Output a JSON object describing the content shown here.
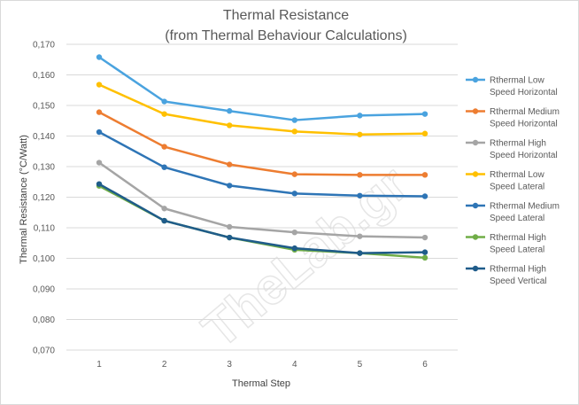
{
  "chart_data": {
    "type": "line",
    "title": "Thermal Resistance",
    "subtitle": "(from Thermal Behaviour Calculations)",
    "xlabel": "Thermal Step",
    "ylabel": "Thermal Resistance (°C/Watt)",
    "x": [
      1,
      2,
      3,
      4,
      5,
      6
    ],
    "ylim": [
      0.07,
      0.17
    ],
    "yticks": [
      "0,070",
      "0,080",
      "0,090",
      "0,100",
      "0,110",
      "0,120",
      "0,130",
      "0,140",
      "0,150",
      "0,160",
      "0,170"
    ],
    "grid": true,
    "legend_position": "right",
    "series": [
      {
        "name_line1": "Rthermal Low",
        "name_line2": "Speed Horizontal",
        "color": "#4aa3df",
        "values": [
          0.1658,
          0.1513,
          0.1482,
          0.1452,
          0.1467,
          0.1472
        ]
      },
      {
        "name_line1": "Rthermal Medium",
        "name_line2": "Speed Horizontal",
        "color": "#ed7d31",
        "values": [
          0.1478,
          0.1365,
          0.1307,
          0.1275,
          0.1273,
          0.1273
        ]
      },
      {
        "name_line1": "Rthermal High",
        "name_line2": "Speed Horizontal",
        "color": "#a5a5a5",
        "values": [
          0.1313,
          0.1163,
          0.1103,
          0.1085,
          0.1072,
          0.1068
        ]
      },
      {
        "name_line1": "Rthermal Low",
        "name_line2": "Speed Lateral",
        "color": "#ffc000",
        "values": [
          0.1568,
          0.1472,
          0.1435,
          0.1415,
          0.1405,
          0.1408
        ]
      },
      {
        "name_line1": "Rthermal Medium",
        "name_line2": "Speed Lateral",
        "color": "#2e75b6",
        "values": [
          0.1413,
          0.1298,
          0.1238,
          0.1212,
          0.1205,
          0.1203
        ]
      },
      {
        "name_line1": "Rthermal High",
        "name_line2": "Speed Lateral",
        "color": "#70ad47",
        "values": [
          0.1237,
          0.1123,
          0.1068,
          0.1028,
          0.1017,
          0.1002
        ]
      },
      {
        "name_line1": "Rthermal High",
        "name_line2": "Speed Vertical",
        "color": "#1f5c8a",
        "values": [
          0.1243,
          0.1123,
          0.1068,
          0.1033,
          0.1017,
          0.102
        ]
      }
    ]
  },
  "watermark": "TheLab.gr"
}
